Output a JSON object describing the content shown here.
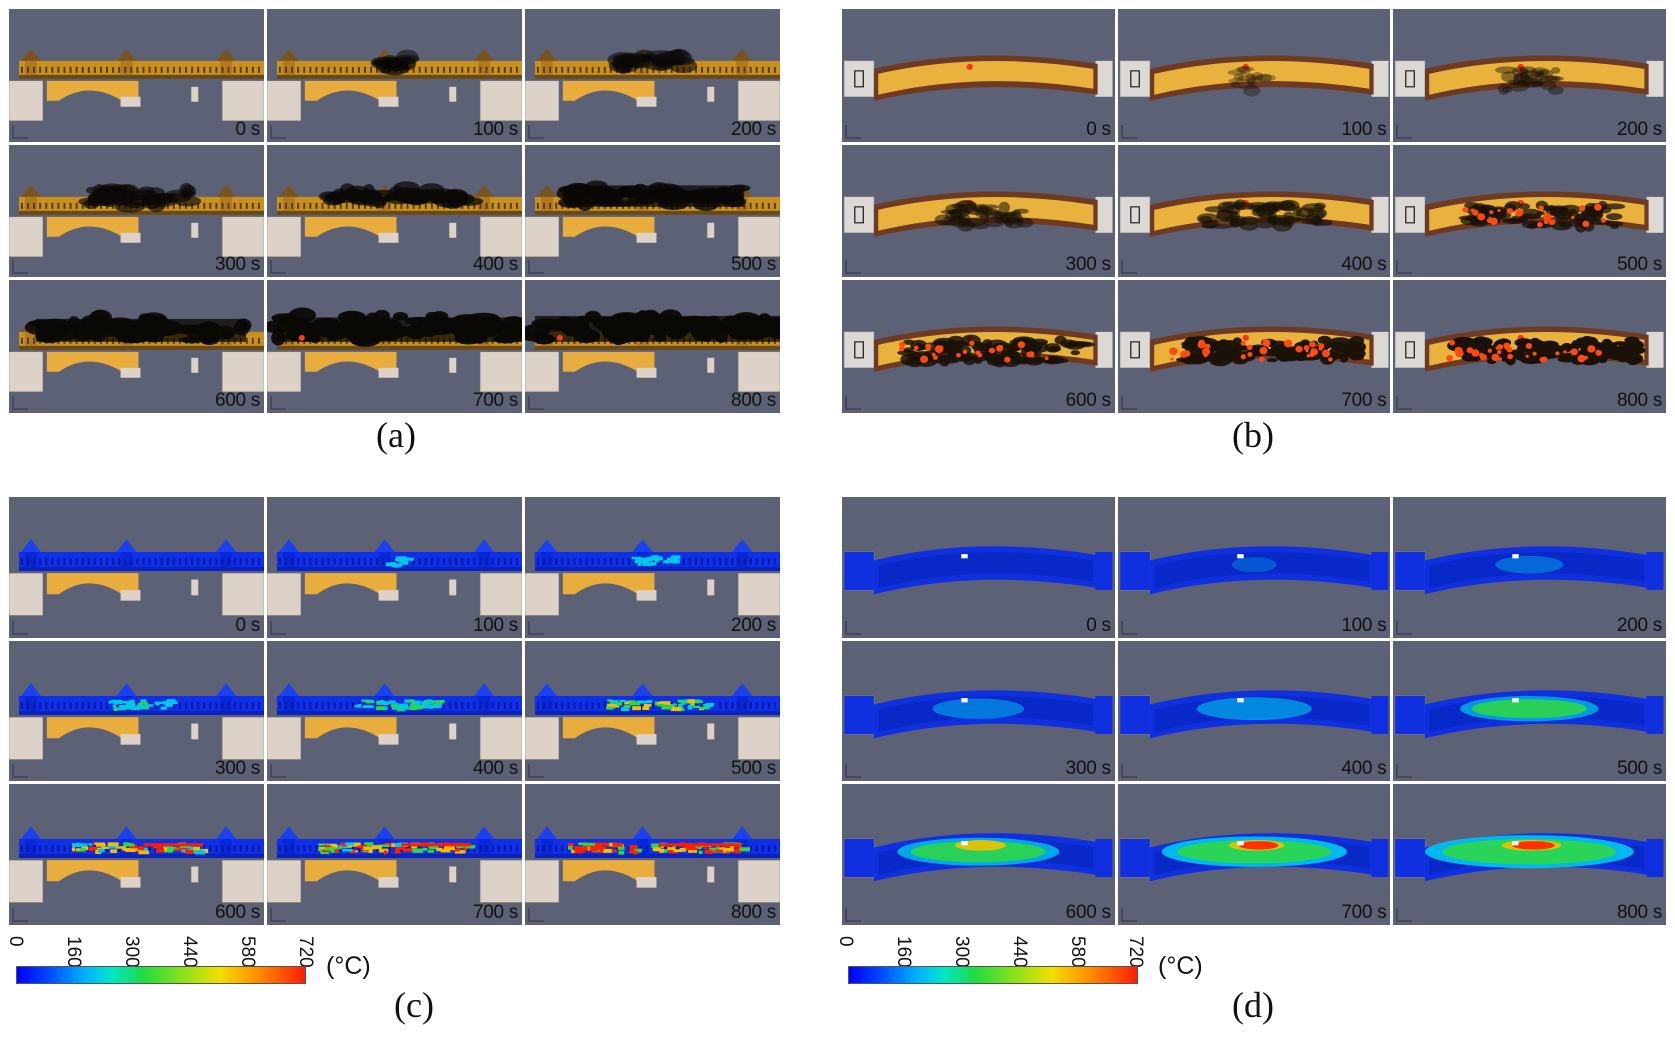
{
  "panels": [
    {
      "id": "a",
      "caption": "(a)",
      "view": "side",
      "mode": "smoke",
      "frames": [
        {
          "t": "0 s",
          "level": 0
        },
        {
          "t": "100 s",
          "level": 1
        },
        {
          "t": "200 s",
          "level": 2
        },
        {
          "t": "300 s",
          "level": 3
        },
        {
          "t": "400 s",
          "level": 4
        },
        {
          "t": "500 s",
          "level": 5
        },
        {
          "t": "600 s",
          "level": 6
        },
        {
          "t": "700 s",
          "level": 7
        },
        {
          "t": "800 s",
          "level": 8
        }
      ]
    },
    {
      "id": "b",
      "caption": "(b)",
      "view": "top",
      "mode": "smoke",
      "frames": [
        {
          "t": "0 s",
          "level": 0
        },
        {
          "t": "100 s",
          "level": 1
        },
        {
          "t": "200 s",
          "level": 2
        },
        {
          "t": "300 s",
          "level": 3
        },
        {
          "t": "400 s",
          "level": 4
        },
        {
          "t": "500 s",
          "level": 5
        },
        {
          "t": "600 s",
          "level": 6
        },
        {
          "t": "700 s",
          "level": 7
        },
        {
          "t": "800 s",
          "level": 8
        }
      ]
    },
    {
      "id": "c",
      "caption": "(c)",
      "view": "side",
      "mode": "temp",
      "frames": [
        {
          "t": "0 s",
          "level": 0
        },
        {
          "t": "100 s",
          "level": 1
        },
        {
          "t": "200 s",
          "level": 2
        },
        {
          "t": "300 s",
          "level": 3
        },
        {
          "t": "400 s",
          "level": 4
        },
        {
          "t": "500 s",
          "level": 5
        },
        {
          "t": "600 s",
          "level": 6
        },
        {
          "t": "700 s",
          "level": 7
        },
        {
          "t": "800 s",
          "level": 8
        }
      ]
    },
    {
      "id": "d",
      "caption": "(d)",
      "view": "top",
      "mode": "temp",
      "frames": [
        {
          "t": "0 s",
          "level": 0
        },
        {
          "t": "100 s",
          "level": 1
        },
        {
          "t": "200 s",
          "level": 2
        },
        {
          "t": "300 s",
          "level": 3
        },
        {
          "t": "400 s",
          "level": 4
        },
        {
          "t": "500 s",
          "level": 5
        },
        {
          "t": "600 s",
          "level": 6
        },
        {
          "t": "700 s",
          "level": 7
        },
        {
          "t": "800 s",
          "level": 8
        }
      ]
    }
  ],
  "colorbar": {
    "ticks": [
      "0",
      "160",
      "300",
      "440",
      "580",
      "720"
    ],
    "unit": "(°C)",
    "colors": [
      "#0000ff",
      "#00b4ff",
      "#20dc40",
      "#f0e000",
      "#ff8c00",
      "#ff1e00"
    ]
  }
}
